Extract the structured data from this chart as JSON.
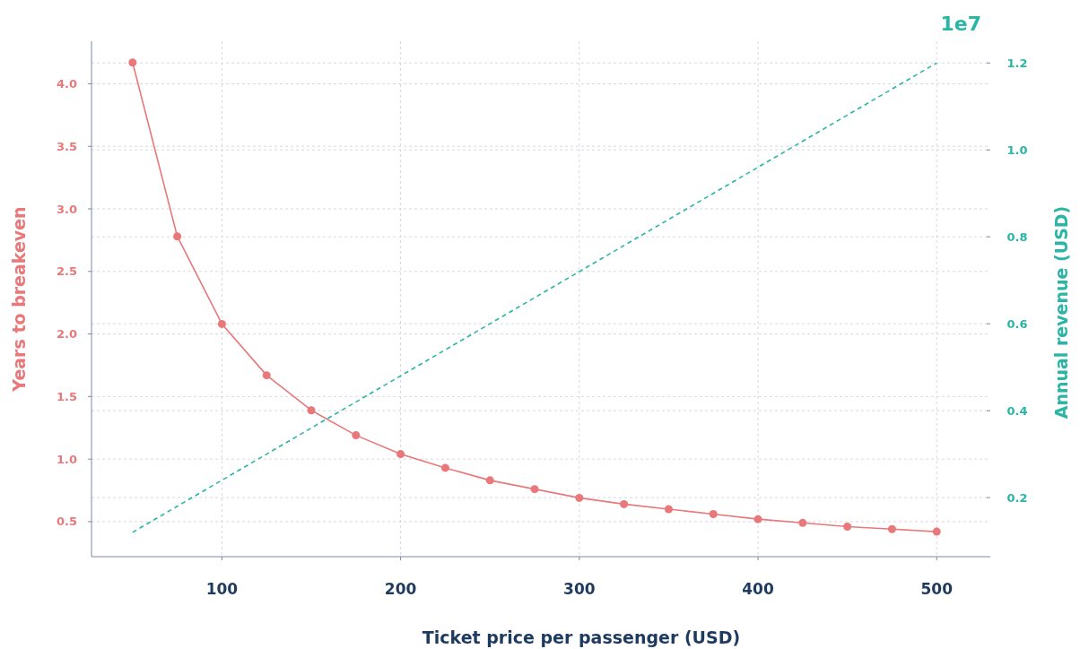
{
  "chart_data": {
    "type": "line",
    "xlabel": "Ticket price per passenger (USD)",
    "ylabel": "Years to breakeven",
    "y2label": "Annual revenue (USD)",
    "x": [
      50,
      75,
      100,
      125,
      150,
      175,
      200,
      225,
      250,
      275,
      300,
      325,
      350,
      375,
      400,
      425,
      450,
      475,
      500
    ],
    "series": [
      {
        "color": "#e8787a",
        "marker": "circle",
        "line_style": "solid",
        "values": [
          4.17,
          2.78,
          2.08,
          1.67,
          1.39,
          1.19,
          1.04,
          0.93,
          0.83,
          0.76,
          0.69,
          0.64,
          0.6,
          0.56,
          0.52,
          0.49,
          0.46,
          0.44,
          0.42
        ]
      },
      {
        "color": "#2ab5a5",
        "marker": "none",
        "line_style": "dashed",
        "axis": "y2",
        "values": [
          0.12,
          0.18,
          0.24,
          0.3,
          0.36,
          0.42,
          0.48,
          0.54,
          0.6,
          0.66,
          0.72,
          0.78,
          0.84,
          0.9,
          0.96,
          1.02,
          1.08,
          1.14,
          1.2
        ]
      }
    ],
    "xlim": [
      27,
      530
    ],
    "xticks": [
      100,
      200,
      300,
      400,
      500
    ],
    "ylim": [
      0.22,
      4.34
    ],
    "yticks": [
      {
        "value": 0.5,
        "label": "0.5"
      },
      {
        "value": 1,
        "label": "1.0"
      },
      {
        "value": 1.5,
        "label": "1.5"
      },
      {
        "value": 2,
        "label": "2.0"
      },
      {
        "value": 2.5,
        "label": "2.5"
      },
      {
        "value": 3,
        "label": "3.0"
      },
      {
        "value": 3.5,
        "label": "3.5"
      },
      {
        "value": 4,
        "label": "4.0"
      }
    ],
    "y2lim": [
      0.064,
      1.25
    ],
    "y2ticks": [
      0.2,
      0.4,
      0.6,
      0.8,
      {
        "value": 1,
        "label": "1.0"
      },
      1.2
    ],
    "annotations": [
      "1e7"
    ],
    "grid": true
  }
}
